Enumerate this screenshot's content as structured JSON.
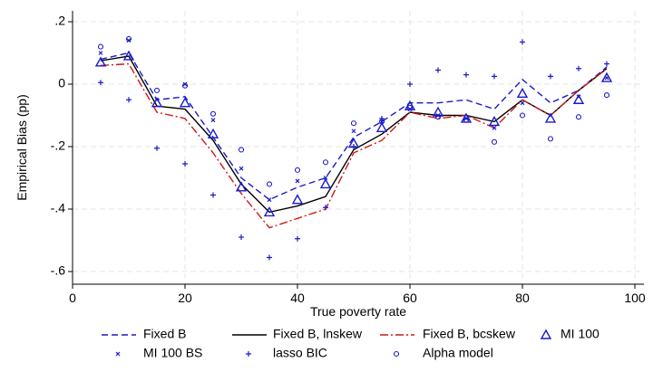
{
  "chart_data": {
    "type": "line",
    "title": "",
    "xlabel": "True poverty rate",
    "ylabel": "Empirical Bias (pp)",
    "xlim": [
      0,
      100
    ],
    "ylim": [
      -0.6,
      0.2
    ],
    "xticks": [
      0,
      20,
      40,
      60,
      80,
      100
    ],
    "xtick_labels": [
      "0",
      "20",
      "40",
      "60",
      "80",
      "100"
    ],
    "yticks": [
      0.2,
      0,
      -0.2,
      -0.4,
      -0.6
    ],
    "ytick_labels": [
      ".2",
      "0",
      "-.2",
      "-.4",
      "-.6"
    ],
    "grid": true,
    "legend_position": "bottom",
    "x": [
      5,
      10,
      15,
      20,
      25,
      30,
      35,
      40,
      45,
      50,
      55,
      60,
      65,
      70,
      75,
      80,
      85,
      90,
      95
    ],
    "series": [
      {
        "name": "Fixed B",
        "kind": "line",
        "style": "dashed",
        "color": "#1a1acc",
        "values": [
          0.08,
          0.1,
          -0.05,
          -0.04,
          -0.17,
          -0.3,
          -0.37,
          -0.33,
          -0.3,
          -0.17,
          -0.12,
          -0.06,
          -0.06,
          -0.05,
          -0.08,
          0.015,
          -0.06,
          -0.02,
          0.055
        ]
      },
      {
        "name": "Fixed B, lnskew",
        "kind": "line",
        "style": "solid",
        "color": "#000000",
        "values": [
          0.075,
          0.09,
          -0.07,
          -0.08,
          -0.18,
          -0.32,
          -0.41,
          -0.39,
          -0.36,
          -0.21,
          -0.16,
          -0.09,
          -0.1,
          -0.1,
          -0.12,
          -0.05,
          -0.1,
          -0.02,
          0.05
        ]
      },
      {
        "name": "Fixed B, bcskew",
        "kind": "line",
        "style": "dashdot",
        "color": "#cc1a1a",
        "values": [
          0.06,
          0.065,
          -0.09,
          -0.11,
          -0.22,
          -0.35,
          -0.46,
          -0.43,
          -0.4,
          -0.22,
          -0.18,
          -0.09,
          -0.11,
          -0.1,
          -0.14,
          -0.05,
          -0.1,
          -0.02,
          0.05
        ]
      },
      {
        "name": "MI 100",
        "kind": "marker",
        "marker": "triangle",
        "color": "#1a1acc",
        "values": [
          0.07,
          0.09,
          -0.06,
          -0.06,
          -0.16,
          -0.33,
          -0.41,
          -0.37,
          -0.32,
          -0.19,
          -0.14,
          -0.07,
          -0.09,
          -0.11,
          -0.12,
          -0.03,
          -0.11,
          -0.05,
          0.02
        ]
      },
      {
        "name": "MI 100 BS",
        "kind": "marker",
        "marker": "x",
        "color": "#1a1acc",
        "values": [
          0.1,
          0.14,
          -0.05,
          0.0,
          -0.115,
          -0.27,
          -0.37,
          -0.31,
          -0.3,
          -0.15,
          -0.12,
          -0.08,
          -0.1,
          -0.11,
          -0.14,
          -0.06,
          -0.1,
          -0.04,
          0.02
        ]
      },
      {
        "name": "lasso BIC",
        "kind": "marker",
        "marker": "plus",
        "color": "#1a1acc",
        "values": [
          0.005,
          -0.05,
          -0.205,
          -0.255,
          -0.355,
          -0.49,
          -0.555,
          -0.495,
          -0.395,
          -0.2,
          -0.11,
          0.0,
          0.045,
          0.03,
          0.025,
          0.135,
          0.025,
          0.05,
          0.065
        ]
      },
      {
        "name": "Alpha model",
        "kind": "marker",
        "marker": "circle",
        "color": "#1a1acc",
        "values": [
          0.12,
          0.145,
          -0.02,
          -0.005,
          -0.095,
          -0.21,
          -0.32,
          -0.275,
          -0.25,
          -0.125,
          -0.12,
          -0.075,
          -0.105,
          -0.115,
          -0.185,
          -0.1,
          -0.175,
          -0.105,
          -0.035
        ]
      }
    ]
  }
}
